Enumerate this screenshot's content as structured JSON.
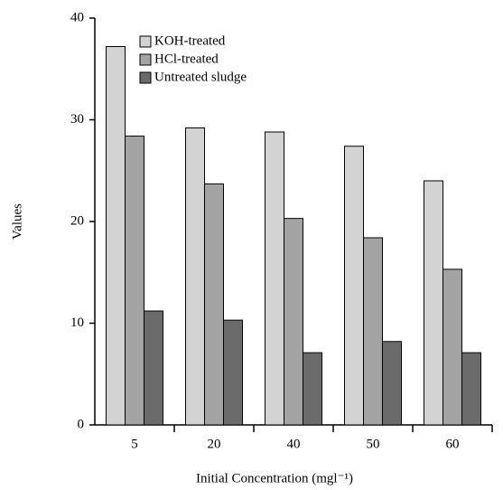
{
  "chart_data": {
    "type": "bar",
    "xlabel": "Initial Concentration (mgl⁻¹)",
    "ylabel": "Values",
    "categories": [
      "5",
      "20",
      "40",
      "50",
      "60"
    ],
    "series": [
      {
        "name": "KOH-treated",
        "color": "#d3d3d3",
        "values": [
          37.2,
          29.2,
          28.8,
          27.4,
          24.0
        ]
      },
      {
        "name": "HCl-treated",
        "color": "#a3a3a3",
        "values": [
          28.4,
          23.7,
          20.3,
          18.4,
          15.3
        ]
      },
      {
        "name": "Untreated sludge",
        "color": "#6b6b6b",
        "values": [
          11.2,
          10.3,
          7.1,
          8.2,
          7.1
        ]
      }
    ],
    "ylim": [
      0,
      40
    ],
    "yticks": [
      0,
      10,
      20,
      30,
      40
    ],
    "grid": false
  }
}
